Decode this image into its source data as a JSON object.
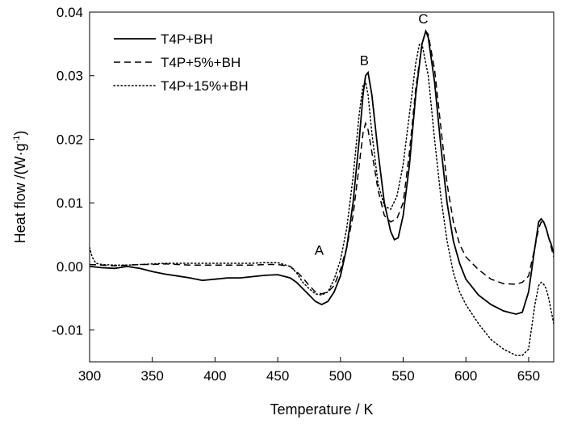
{
  "chart_data": {
    "type": "line",
    "xlabel": "Temperature / K",
    "ylabel": {
      "prefix": "Heat flow /(W·g",
      "sup": "-1",
      "suffix": ")"
    },
    "xlim": [
      300,
      670
    ],
    "ylim": [
      -0.015,
      0.04
    ],
    "xticks": [
      300,
      350,
      400,
      450,
      500,
      550,
      600,
      650
    ],
    "yticks": [
      {
        "value": 0.04,
        "label": "0.04"
      },
      {
        "value": 0.03,
        "label": "0.03"
      },
      {
        "value": 0.02,
        "label": "0.02"
      },
      {
        "value": 0.01,
        "label": "0.01"
      },
      {
        "value": 0.0,
        "label": "0.00"
      },
      {
        "value": -0.01,
        "label": "-0.01"
      }
    ],
    "grid": false,
    "legend_position": "top-left",
    "annotations": [
      {
        "text": "A",
        "x": 483,
        "y": 0.0018
      },
      {
        "text": "B",
        "x": 519,
        "y": 0.0317
      },
      {
        "text": "C",
        "x": 566,
        "y": 0.0382
      }
    ],
    "series": [
      {
        "name": "T4P+BH",
        "style": "solid",
        "x": [
          300,
          310,
          320,
          330,
          340,
          350,
          360,
          370,
          380,
          390,
          400,
          410,
          420,
          430,
          440,
          450,
          460,
          465,
          470,
          475,
          480,
          485,
          490,
          495,
          500,
          505,
          510,
          515,
          518,
          520,
          522,
          525,
          530,
          535,
          540,
          543,
          546,
          550,
          555,
          560,
          565,
          568,
          570,
          575,
          580,
          585,
          590,
          595,
          600,
          610,
          620,
          630,
          640,
          645,
          650,
          655,
          658,
          660,
          662,
          664,
          666,
          668,
          670
        ],
        "y": [
          0.0,
          -0.0002,
          -0.0003,
          0.0,
          -0.0003,
          -0.0008,
          -0.0012,
          -0.0015,
          -0.0018,
          -0.0022,
          -0.002,
          -0.0018,
          -0.0018,
          -0.0016,
          -0.0014,
          -0.0013,
          -0.0018,
          -0.0025,
          -0.0035,
          -0.0045,
          -0.0055,
          -0.006,
          -0.0055,
          -0.004,
          -0.0015,
          0.003,
          0.01,
          0.02,
          0.027,
          0.03,
          0.0305,
          0.027,
          0.018,
          0.01,
          0.0055,
          0.0042,
          0.0045,
          0.008,
          0.016,
          0.027,
          0.035,
          0.037,
          0.036,
          0.029,
          0.019,
          0.01,
          0.004,
          0.0005,
          -0.002,
          -0.0045,
          -0.006,
          -0.007,
          -0.0075,
          -0.0072,
          -0.004,
          0.003,
          0.007,
          0.0075,
          0.007,
          0.006,
          0.0045,
          0.0035,
          0.002
        ]
      },
      {
        "name": "T4P+5%+BH",
        "style": "dashed",
        "x": [
          300,
          310,
          320,
          330,
          340,
          350,
          360,
          370,
          380,
          390,
          400,
          410,
          420,
          430,
          440,
          450,
          460,
          465,
          470,
          475,
          480,
          485,
          490,
          495,
          500,
          505,
          510,
          515,
          518,
          520,
          522,
          525,
          530,
          535,
          540,
          545,
          550,
          555,
          560,
          565,
          568,
          570,
          575,
          580,
          585,
          590,
          595,
          600,
          610,
          620,
          630,
          640,
          645,
          650,
          655,
          658,
          660,
          662,
          664,
          666,
          668,
          670
        ],
        "y": [
          0.0003,
          0.0002,
          0.0001,
          0.0002,
          0.0003,
          0.0003,
          0.0004,
          0.0003,
          0.0002,
          0.0002,
          0.0002,
          0.0002,
          0.0002,
          0.0002,
          0.0003,
          0.0003,
          0.0,
          -0.0008,
          -0.0018,
          -0.003,
          -0.004,
          -0.0043,
          -0.004,
          -0.003,
          -0.0005,
          0.003,
          0.008,
          0.016,
          0.021,
          0.0225,
          0.0215,
          0.018,
          0.012,
          0.008,
          0.007,
          0.0075,
          0.01,
          0.018,
          0.028,
          0.035,
          0.037,
          0.0365,
          0.031,
          0.022,
          0.013,
          0.007,
          0.0035,
          0.0015,
          -0.0005,
          -0.002,
          -0.0027,
          -0.0028,
          -0.0025,
          -0.0015,
          0.003,
          0.006,
          0.007,
          0.0068,
          0.006,
          0.0045,
          0.003,
          0.0015
        ]
      },
      {
        "name": "T4P+15%+BH",
        "style": "dotted",
        "x": [
          300,
          302,
          305,
          310,
          320,
          330,
          340,
          350,
          360,
          370,
          380,
          390,
          400,
          410,
          420,
          430,
          440,
          450,
          460,
          465,
          470,
          475,
          480,
          485,
          490,
          495,
          500,
          505,
          510,
          515,
          518,
          520,
          522,
          525,
          530,
          535,
          540,
          545,
          550,
          555,
          560,
          563,
          565,
          570,
          575,
          580,
          585,
          590,
          595,
          600,
          610,
          620,
          630,
          640,
          645,
          650,
          655,
          658,
          660,
          662,
          664,
          666,
          668,
          670
        ],
        "y": [
          0.003,
          0.0015,
          0.0005,
          0.0003,
          0.0002,
          0.0002,
          0.0003,
          0.0004,
          0.0005,
          0.0005,
          0.0005,
          0.0005,
          0.0005,
          0.0005,
          0.0005,
          0.0005,
          0.0006,
          0.0006,
          0.0,
          -0.001,
          -0.0025,
          -0.0035,
          -0.0043,
          -0.0045,
          -0.004,
          -0.002,
          0.001,
          0.006,
          0.014,
          0.024,
          0.0285,
          0.029,
          0.027,
          0.021,
          0.013,
          0.0095,
          0.009,
          0.011,
          0.016,
          0.024,
          0.032,
          0.035,
          0.035,
          0.03,
          0.02,
          0.011,
          0.004,
          -0.001,
          -0.004,
          -0.006,
          -0.009,
          -0.0115,
          -0.013,
          -0.014,
          -0.014,
          -0.013,
          -0.006,
          -0.003,
          -0.0025,
          -0.0028,
          -0.0035,
          -0.005,
          -0.007,
          -0.009
        ]
      }
    ]
  }
}
